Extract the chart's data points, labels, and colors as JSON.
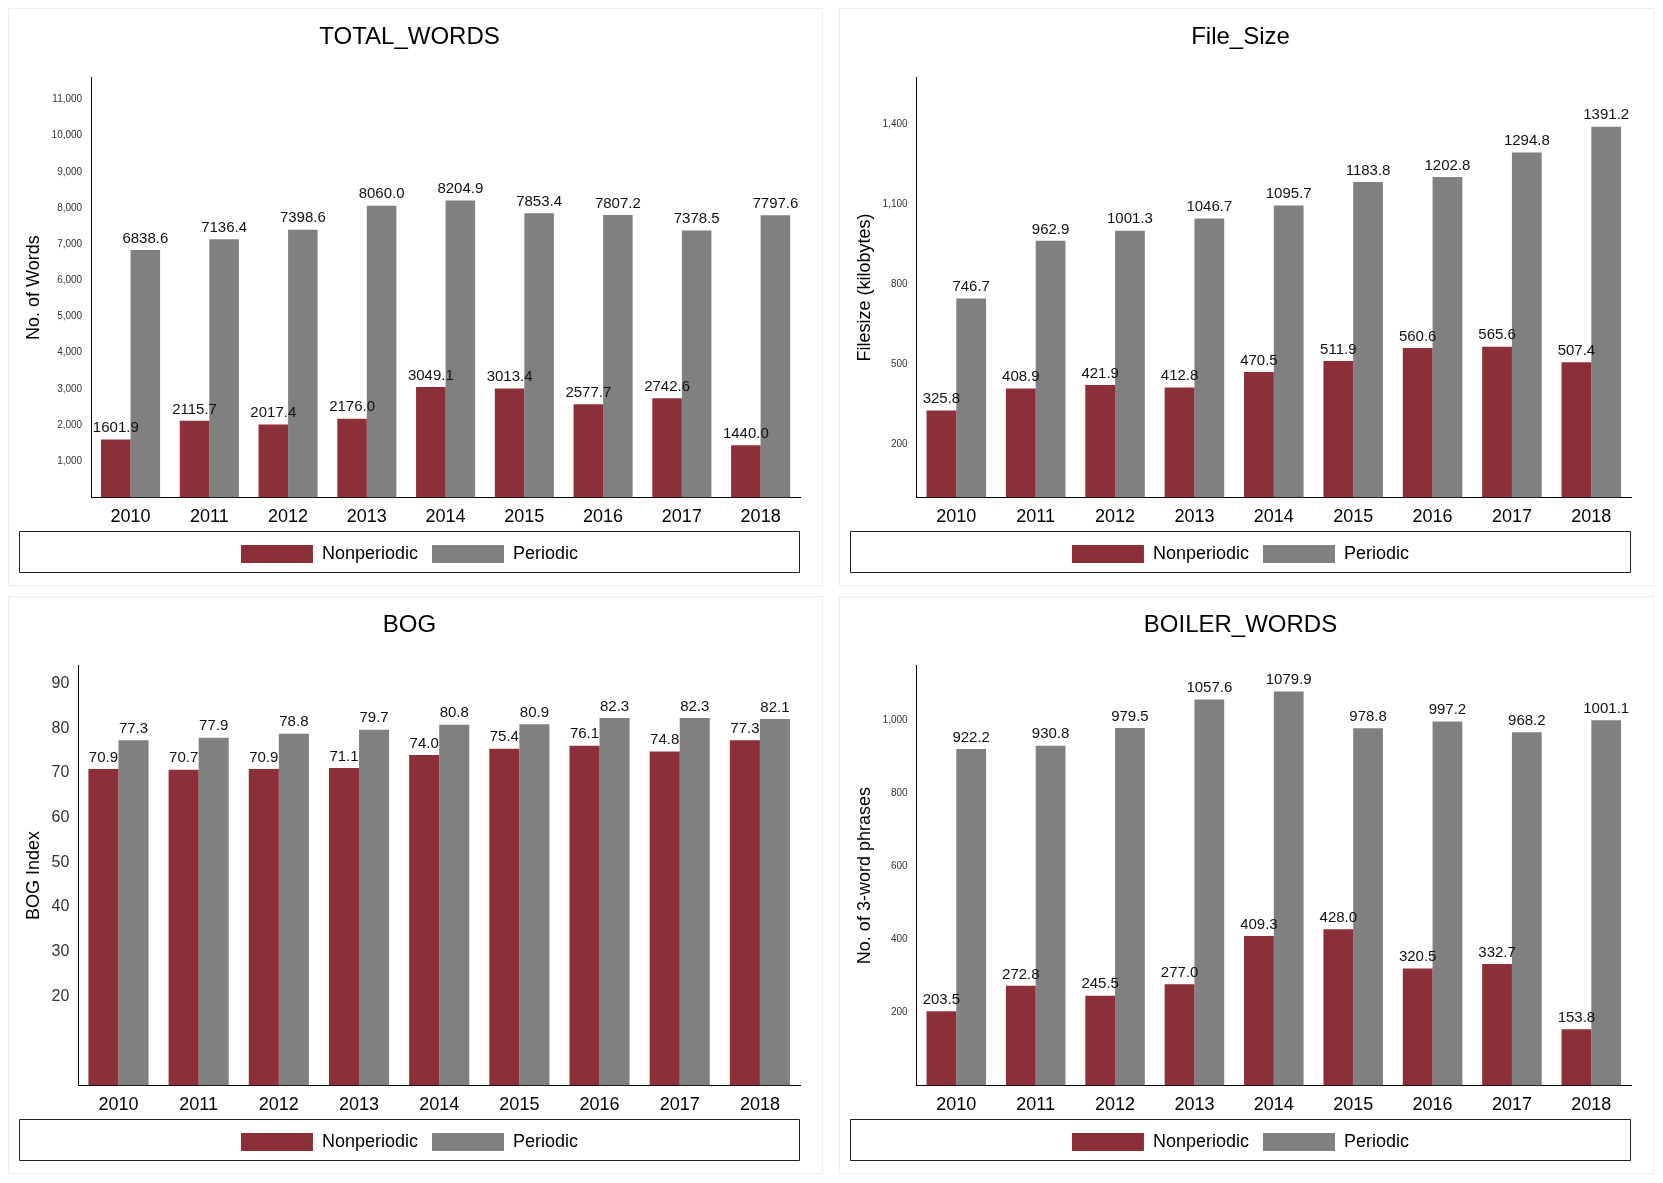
{
  "chart_data": [
    {
      "type": "bar",
      "title": "TOTAL_WORDS",
      "ylabel": "No. of Words",
      "categories": [
        "2010",
        "2011",
        "2012",
        "2013",
        "2014",
        "2015",
        "2016",
        "2017",
        "2018"
      ],
      "series": [
        {
          "name": "Nonperiodic",
          "color": "#8b3039",
          "values": [
            1601.9,
            2115.7,
            2017.4,
            2176.0,
            3049.1,
            3013.4,
            2577.7,
            2742.6,
            1440.0
          ],
          "value_labels": [
            "1601.9",
            "2115.7",
            "2017.4",
            "2176.0",
            "3049.1",
            "3013.4",
            "2577.7",
            "2742.6",
            "1440.0"
          ]
        },
        {
          "name": "Periodic",
          "color": "#808080",
          "values": [
            6838.6,
            7136.4,
            7398.6,
            8060.0,
            8204.9,
            7853.4,
            7807.2,
            7378.5,
            7797.6
          ],
          "value_labels": [
            "6838.6",
            "7136.4",
            "7398.6",
            "8060.0",
            "8204.9",
            "7853.4",
            "7807.2",
            "7378.5",
            "7797.6"
          ]
        }
      ],
      "ylim": [
        0,
        11600
      ],
      "yticks": [
        {
          "value": 1000,
          "label": "1,000"
        },
        {
          "value": 2000,
          "label": "2,000"
        },
        {
          "value": 3000,
          "label": "3,000"
        },
        {
          "value": 4000,
          "label": "4,000"
        },
        {
          "value": 5000,
          "label": "5,000"
        },
        {
          "value": 6000,
          "label": "6,000"
        },
        {
          "value": 7000,
          "label": "7,000"
        },
        {
          "value": 8000,
          "label": "8,000"
        },
        {
          "value": 9000,
          "label": "9,000"
        },
        {
          "value": 10000,
          "label": "10,000"
        },
        {
          "value": 11000,
          "label": "11,000"
        }
      ],
      "grid": false,
      "legend": "bottom"
    },
    {
      "type": "bar",
      "title": "File_Size",
      "ylabel": "Filesize (kilobytes)",
      "categories": [
        "2010",
        "2011",
        "2012",
        "2013",
        "2014",
        "2015",
        "2016",
        "2017",
        "2018"
      ],
      "series": [
        {
          "name": "Nonperiodic",
          "color": "#8b3039",
          "values": [
            325.8,
            408.9,
            421.9,
            412.8,
            470.5,
            511.9,
            560.6,
            565.6,
            507.4
          ],
          "value_labels": [
            "325.8",
            "408.9",
            "421.9",
            "412.8",
            "470.5",
            "511.9",
            "560.6",
            "565.6",
            "507.4"
          ]
        },
        {
          "name": "Periodic",
          "color": "#808080",
          "values": [
            746.7,
            962.9,
            1001.3,
            1046.7,
            1095.7,
            1183.8,
            1202.8,
            1294.8,
            1391.2
          ],
          "value_labels": [
            "746.7",
            "962.9",
            "1001.3",
            "1046.7",
            "1095.7",
            "1183.8",
            "1202.8",
            "1294.8",
            "1391.2"
          ]
        }
      ],
      "ylim": [
        0,
        1575
      ],
      "yticks": [
        200,
        500,
        800,
        {
          "value": 1100,
          "label": "1,100"
        },
        {
          "value": 1400,
          "label": "1,400"
        }
      ],
      "grid": false,
      "legend": "bottom"
    },
    {
      "type": "bar",
      "title": "BOG",
      "ylabel": "BOG Index",
      "categories": [
        "2010",
        "2011",
        "2012",
        "2013",
        "2014",
        "2015",
        "2016",
        "2017",
        "2018"
      ],
      "series": [
        {
          "name": "Nonperiodic",
          "color": "#8b3039",
          "values": [
            70.9,
            70.7,
            70.9,
            71.1,
            74.0,
            75.4,
            76.1,
            74.8,
            77.3
          ],
          "value_labels": [
            "70.9",
            "70.7",
            "70.9",
            "71.1",
            "74.0",
            "75.4",
            "76.1",
            "74.8",
            "77.3"
          ]
        },
        {
          "name": "Periodic",
          "color": "#808080",
          "values": [
            77.3,
            77.9,
            78.8,
            79.7,
            80.8,
            80.9,
            82.3,
            82.3,
            82.1
          ],
          "value_labels": [
            "77.3",
            "77.9",
            "78.8",
            "79.7",
            "80.8",
            "80.9",
            "82.3",
            "82.3",
            "82.1"
          ]
        }
      ],
      "ylim": [
        0,
        94
      ],
      "yticks": [
        20,
        30,
        40,
        50,
        60,
        70,
        80,
        90
      ],
      "grid": false,
      "legend": "bottom"
    },
    {
      "type": "bar",
      "title": "BOILER_WORDS",
      "ylabel": "No. of 3-word phrases",
      "categories": [
        "2010",
        "2011",
        "2012",
        "2013",
        "2014",
        "2015",
        "2016",
        "2017",
        "2018"
      ],
      "series": [
        {
          "name": "Nonperiodic",
          "color": "#8b3039",
          "values": [
            203.5,
            272.8,
            245.5,
            277.0,
            409.3,
            428.0,
            320.5,
            332.7,
            153.8
          ],
          "value_labels": [
            "203.5",
            "272.8",
            "245.5",
            "277.0",
            "409.3",
            "428.0",
            "320.5",
            "332.7",
            "153.8"
          ]
        },
        {
          "name": "Periodic",
          "color": "#808080",
          "values": [
            922.2,
            930.8,
            979.5,
            1057.6,
            1079.9,
            978.8,
            997.2,
            968.2,
            1001.1
          ],
          "value_labels": [
            "922.2",
            "930.8",
            "979.5",
            "1057.6",
            "1079.9",
            "978.8",
            "997.2",
            "968.2",
            "1001.1"
          ]
        }
      ],
      "ylim": [
        0,
        1150
      ],
      "yticks": [
        200,
        400,
        600,
        800,
        {
          "value": 1000,
          "label": "1,000"
        }
      ],
      "grid": false,
      "legend": "bottom"
    }
  ]
}
